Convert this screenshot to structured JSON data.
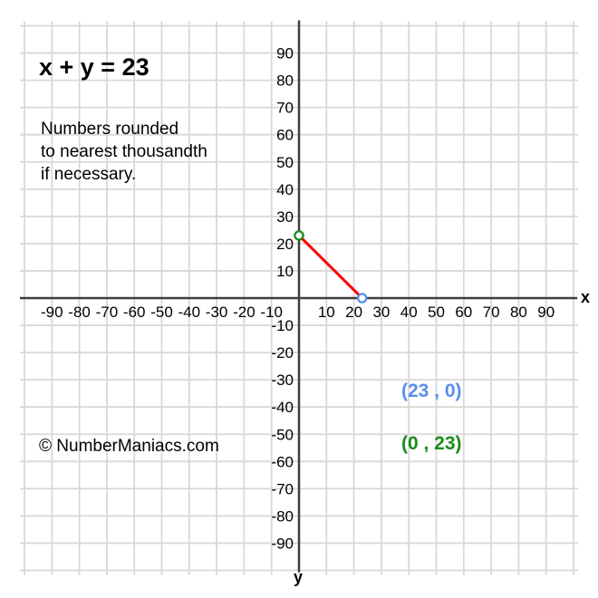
{
  "page": {
    "background_color": "#ffffff"
  },
  "title": {
    "text": "x + y = 23"
  },
  "note": {
    "lines": [
      "Numbers rounded",
      "to nearest thousandth",
      "if necessary."
    ]
  },
  "copyright": {
    "text": "© NumberManiacs.com"
  },
  "annotations": {
    "x_intercept_label": {
      "text": "(23 , 0)",
      "color": "#5b8dee"
    },
    "y_intercept_label": {
      "text": "(0 , 23)",
      "color": "#1a8c1a"
    }
  },
  "chart_data": {
    "type": "line",
    "title": "x + y = 23",
    "equation": "x + y = 23",
    "points": [
      {
        "x": 0,
        "y": 23
      },
      {
        "x": 23,
        "y": 0
      }
    ],
    "segment_color": "#ff0000",
    "y_intercept": {
      "x": 0,
      "y": 23,
      "color": "#1a8c1a",
      "label": "(0 , 23)"
    },
    "x_intercept": {
      "x": 23,
      "y": 0,
      "color": "#5b8dee",
      "label": "(23 , 0)"
    },
    "xlabel": "x",
    "ylabel": "y",
    "xlim": [
      -100,
      100
    ],
    "ylim": [
      -100,
      100
    ],
    "grid": true,
    "grid_step": 10,
    "x_ticks": [
      -90,
      -80,
      -70,
      -60,
      -50,
      -40,
      -30,
      -20,
      -10,
      10,
      20,
      30,
      40,
      50,
      60,
      70,
      80,
      90
    ],
    "y_ticks": [
      -90,
      -80,
      -70,
      -60,
      -50,
      -40,
      -30,
      -20,
      -10,
      10,
      20,
      30,
      40,
      50,
      60,
      70,
      80,
      90
    ],
    "grid_color": "#d8d8d8",
    "axis_color": "#3e3e3e",
    "tick_label_color": "#000000"
  }
}
